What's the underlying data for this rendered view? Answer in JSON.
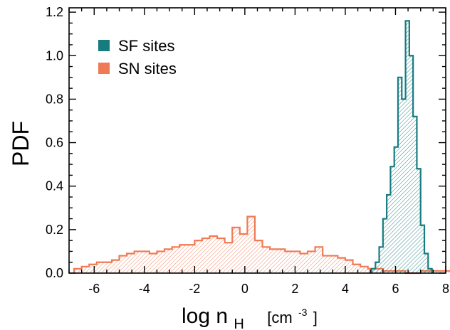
{
  "chart_data": {
    "type": "histogram",
    "xlabel": {
      "main": "log n",
      "sub": "H",
      "unit_prefix": "[cm",
      "unit_exp": "-3",
      "unit_suffix": "]"
    },
    "ylabel": "PDF",
    "xlim": [
      -7,
      8
    ],
    "ylim": [
      0,
      1.22
    ],
    "xticks": [
      -6,
      -4,
      -2,
      0,
      2,
      4,
      6,
      8
    ],
    "yticks": [
      0.0,
      0.2,
      0.4,
      0.6,
      0.8,
      1.0,
      1.2
    ],
    "ytick_labels": [
      "0.0",
      "0.2",
      "0.4",
      "0.6",
      "0.8",
      "1.0",
      "1.2"
    ],
    "legend_position": "top-left",
    "series": [
      {
        "name": "SF sites",
        "color": "#177c80",
        "bin_width": 0.15,
        "bin_start": 5.05,
        "values": [
          0.02,
          0.05,
          0.12,
          0.25,
          0.36,
          0.49,
          0.58,
          0.9,
          0.8,
          1.16,
          1.0,
          0.72,
          0.48,
          0.22,
          0.09,
          0.02
        ]
      },
      {
        "name": "SN sites",
        "color": "#f07a55",
        "bin_width": 0.3,
        "bin_start": -6.8,
        "values": [
          0.02,
          0.03,
          0.04,
          0.05,
          0.05,
          0.06,
          0.08,
          0.09,
          0.1,
          0.1,
          0.09,
          0.1,
          0.11,
          0.12,
          0.13,
          0.13,
          0.15,
          0.16,
          0.17,
          0.16,
          0.14,
          0.21,
          0.18,
          0.26,
          0.15,
          0.12,
          0.11,
          0.11,
          0.1,
          0.1,
          0.09,
          0.1,
          0.12,
          0.08,
          0.08,
          0.07,
          0.06,
          0.04,
          0.03,
          0.02,
          0.02,
          0.01,
          0.01,
          0.01,
          0.0,
          0.0,
          0.01,
          0.01,
          0.01,
          0.01
        ]
      }
    ]
  }
}
